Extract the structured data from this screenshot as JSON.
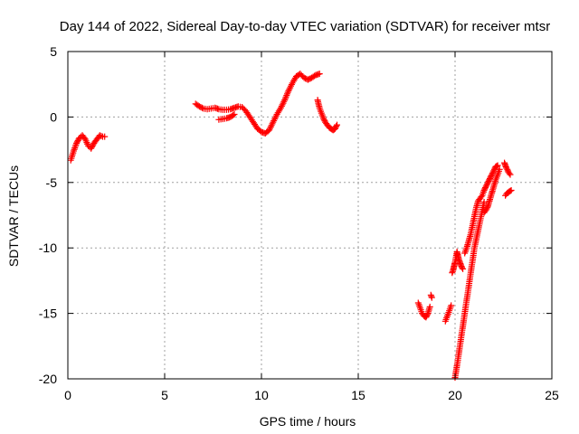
{
  "chart_data": {
    "type": "scatter",
    "title": "Day 144 of 2022, Sidereal Day-to-day VTEC variation (SDTVAR) for receiver mtsr",
    "xlabel": "GPS time / hours",
    "ylabel": "SDTVAR / TECUs",
    "xlim": [
      0,
      25
    ],
    "ylim": [
      -20,
      5
    ],
    "xticks": [
      0,
      5,
      10,
      15,
      20,
      25
    ],
    "yticks": [
      5,
      0,
      -5,
      -10,
      -15,
      -20
    ],
    "grid": true,
    "marker": "+",
    "marker_color": "#ff0000",
    "series": [
      {
        "name": "SDTVAR",
        "segments": [
          {
            "x": [
              0.15,
              0.3,
              0.45,
              0.6,
              0.75,
              0.9,
              1.05,
              1.2,
              1.35,
              1.5,
              1.65,
              1.8,
              1.9
            ],
            "y": [
              -3.3,
              -2.6,
              -2.0,
              -1.6,
              -1.4,
              -1.7,
              -2.2,
              -2.4,
              -2.0,
              -1.7,
              -1.4,
              -1.5,
              -1.5
            ]
          },
          {
            "x": [
              6.6,
              6.8,
              7.0,
              7.2,
              7.4,
              7.6,
              7.8,
              8.0,
              8.2,
              8.4,
              8.6,
              8.8,
              9.0,
              9.2,
              9.4,
              9.6,
              9.8,
              10.0,
              10.2,
              10.4,
              10.6,
              10.8,
              11.0,
              11.2,
              11.4,
              11.6,
              11.8,
              12.0,
              12.2,
              12.4,
              12.6,
              12.8,
              13.0
            ],
            "y": [
              1.0,
              0.8,
              0.65,
              0.6,
              0.65,
              0.7,
              0.6,
              0.55,
              0.55,
              0.6,
              0.7,
              0.8,
              0.75,
              0.45,
              0.0,
              -0.45,
              -0.9,
              -1.15,
              -1.25,
              -1.0,
              -0.4,
              0.2,
              0.7,
              1.3,
              2.0,
              2.6,
              3.1,
              3.3,
              3.0,
              2.85,
              3.0,
              3.2,
              3.3
            ]
          },
          {
            "x": [
              7.8,
              8.0,
              8.2,
              8.4,
              8.6
            ],
            "y": [
              -0.2,
              -0.15,
              -0.1,
              0.0,
              0.2
            ]
          },
          {
            "x": [
              12.9,
              13.0,
              13.1,
              13.2,
              13.3,
              13.4,
              13.5,
              13.6,
              13.7,
              13.8,
              13.9
            ],
            "y": [
              1.3,
              0.7,
              0.3,
              -0.1,
              -0.4,
              -0.6,
              -0.8,
              -0.9,
              -1.0,
              -0.9,
              -0.6
            ]
          },
          {
            "x": [
              18.1,
              18.2,
              18.3,
              18.4,
              18.5,
              18.6,
              18.7
            ],
            "y": [
              -14.2,
              -14.6,
              -15.0,
              -15.2,
              -15.3,
              -15.0,
              -14.5
            ]
          },
          {
            "x": [
              18.75,
              18.8
            ],
            "y": [
              -13.6,
              -13.8
            ]
          },
          {
            "x": [
              19.5,
              19.6,
              19.7,
              19.8
            ],
            "y": [
              -15.6,
              -15.2,
              -14.8,
              -14.4
            ]
          },
          {
            "x": [
              19.85,
              19.9,
              19.95,
              20.0,
              20.05,
              20.1,
              20.15,
              20.2,
              20.25,
              20.3,
              20.35,
              20.4
            ],
            "y": [
              -11.9,
              -11.7,
              -11.4,
              -11.1,
              -10.7,
              -10.3,
              -10.6,
              -10.9,
              -11.1,
              -11.3,
              -11.5,
              -11.6
            ]
          },
          {
            "x": [
              20.0,
              20.1,
              20.2,
              20.3,
              20.4,
              20.5,
              20.6,
              20.7,
              20.8,
              20.9,
              21.0,
              21.1,
              21.2,
              21.3,
              21.4,
              21.5
            ],
            "y": [
              -19.9,
              -19.0,
              -18.0,
              -17.0,
              -16.0,
              -15.0,
              -14.0,
              -13.0,
              -12.0,
              -11.0,
              -10.0,
              -9.3,
              -8.6,
              -7.9,
              -7.2,
              -6.5
            ]
          },
          {
            "x": [
              20.5,
              20.6,
              20.7,
              20.8,
              20.9,
              21.0,
              21.1,
              21.2,
              21.3,
              21.4,
              21.5,
              21.6,
              21.7,
              21.8,
              21.9,
              22.0,
              22.1,
              22.2
            ],
            "y": [
              -10.4,
              -10.0,
              -9.5,
              -9.0,
              -8.3,
              -7.6,
              -6.9,
              -6.4,
              -6.2,
              -6.0,
              -5.6,
              -5.3,
              -5.0,
              -4.7,
              -4.4,
              -4.1,
              -3.8,
              -3.7
            ]
          },
          {
            "x": [
              21.5,
              21.6,
              21.7,
              21.8,
              21.9,
              22.0,
              22.1,
              22.2,
              22.3
            ],
            "y": [
              -7.3,
              -7.1,
              -6.8,
              -6.3,
              -5.8,
              -5.3,
              -4.8,
              -4.4,
              -4.0
            ]
          },
          {
            "x": [
              22.55,
              22.6,
              22.65,
              22.7,
              22.75,
              22.8,
              22.85
            ],
            "y": [
              -3.5,
              -3.7,
              -3.9,
              -4.0,
              -4.2,
              -4.3,
              -4.4
            ]
          },
          {
            "x": [
              22.6,
              22.7,
              22.8,
              22.9
            ],
            "y": [
              -6.0,
              -5.8,
              -5.7,
              -5.6
            ]
          }
        ]
      }
    ]
  }
}
